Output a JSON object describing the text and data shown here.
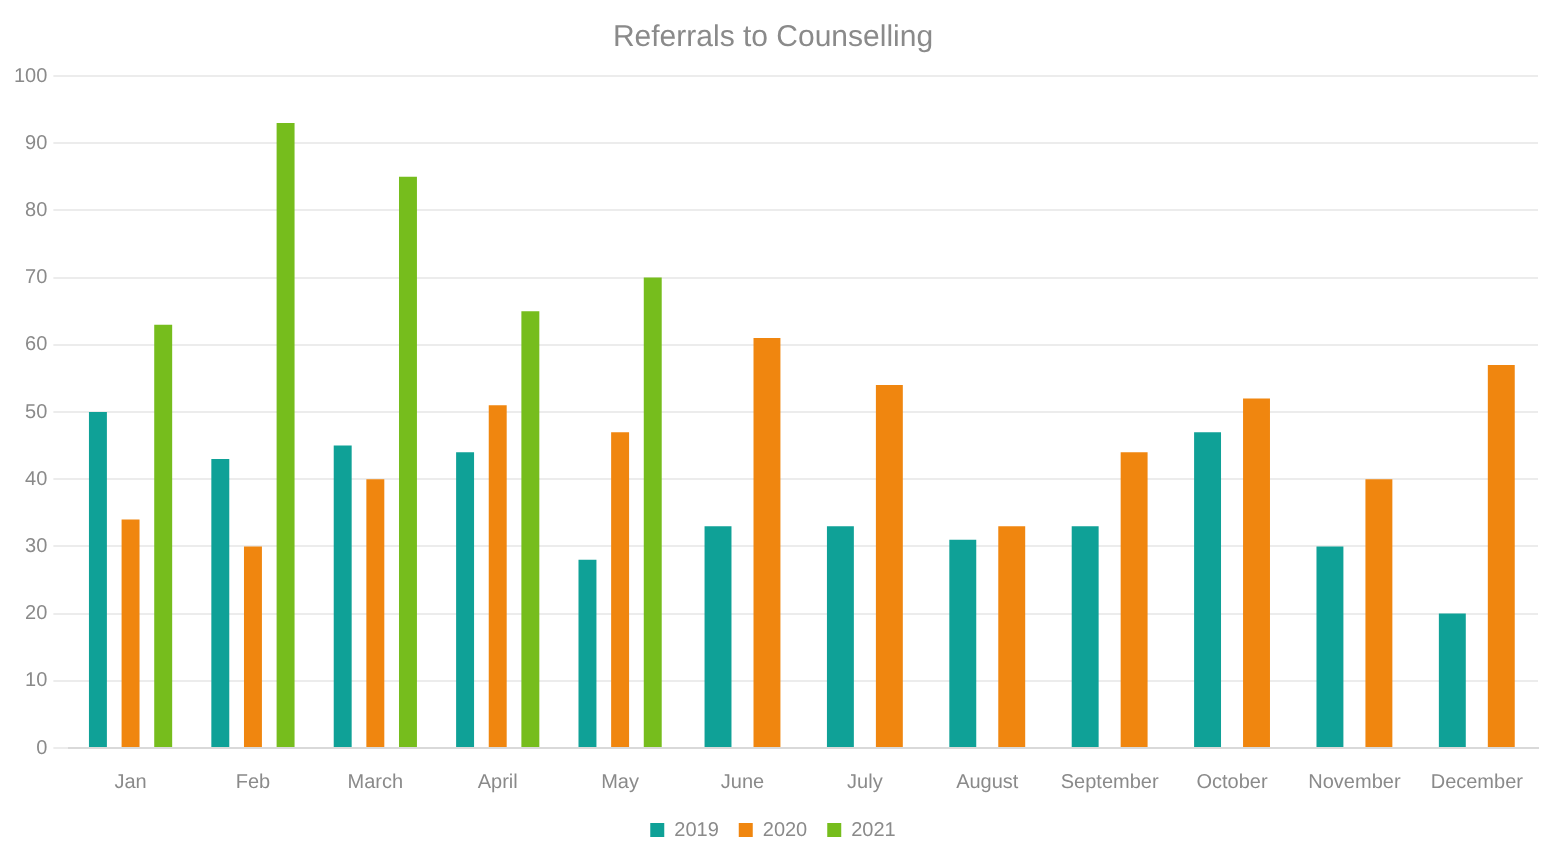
{
  "chart_data": {
    "type": "bar",
    "title": "Referrals to Counselling",
    "categories": [
      "Jan",
      "Feb",
      "March",
      "April",
      "May",
      "June",
      "July",
      "August",
      "September",
      "October",
      "November",
      "December"
    ],
    "series": [
      {
        "name": "2019",
        "color": "#0fa197",
        "values": [
          50,
          43,
          45,
          44,
          28,
          33,
          33,
          31,
          33,
          47,
          30,
          20
        ]
      },
      {
        "name": "2020",
        "color": "#f0860f",
        "values": [
          34,
          30,
          40,
          51,
          47,
          61,
          54,
          33,
          44,
          52,
          40,
          57
        ]
      },
      {
        "name": "2021",
        "color": "#76bd1d",
        "values": [
          63,
          93,
          85,
          65,
          70,
          null,
          null,
          null,
          null,
          null,
          null,
          null
        ]
      }
    ],
    "ylim": [
      0,
      100
    ],
    "yticks": [
      0,
      10,
      20,
      30,
      40,
      50,
      60,
      70,
      80,
      90,
      100
    ],
    "grid": "y",
    "legend": "bottom"
  }
}
